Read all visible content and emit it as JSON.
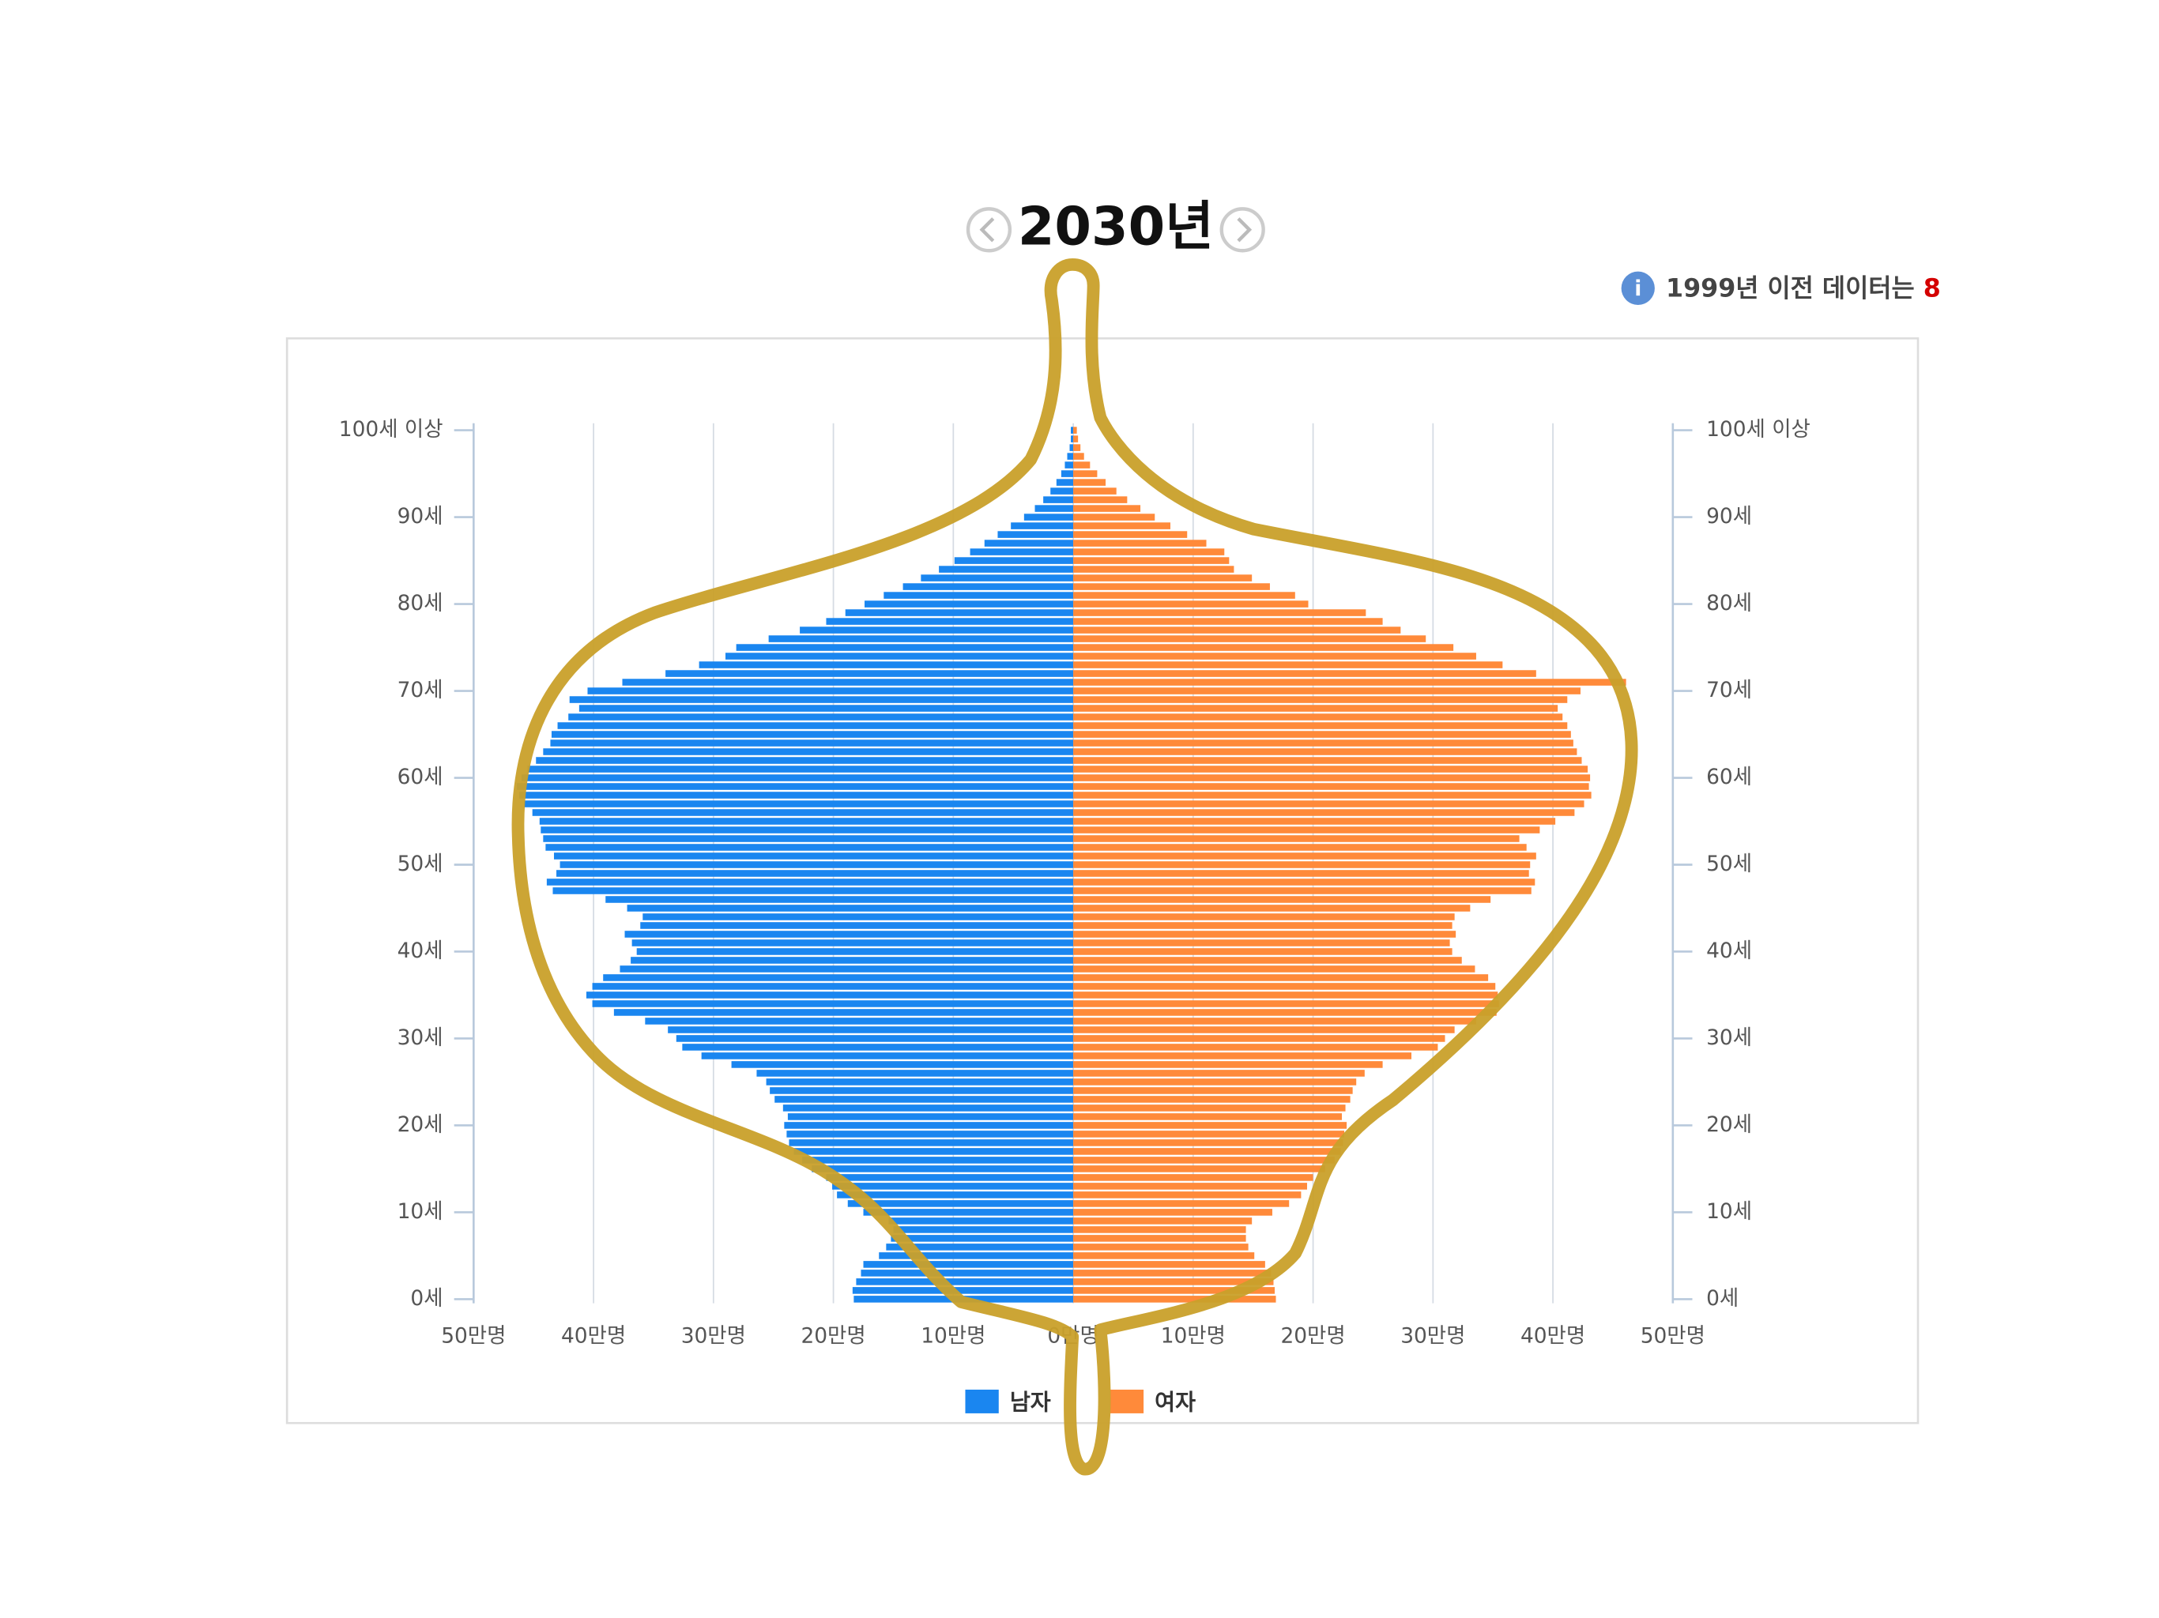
{
  "header": {
    "year": "2030년",
    "info_text": "1999년 이전 데이터는",
    "info_link": "8"
  },
  "chart_data": {
    "type": "pyramid",
    "categories": [
      "0세",
      null,
      null,
      null,
      null,
      null,
      null,
      null,
      null,
      null,
      "10세",
      null,
      null,
      null,
      null,
      null,
      null,
      null,
      null,
      null,
      "20세",
      null,
      null,
      null,
      null,
      null,
      null,
      null,
      null,
      null,
      "30세",
      null,
      null,
      null,
      null,
      null,
      null,
      null,
      null,
      null,
      "40세",
      null,
      null,
      null,
      null,
      null,
      null,
      null,
      null,
      null,
      "50세",
      null,
      null,
      null,
      null,
      null,
      null,
      null,
      null,
      null,
      "60세",
      null,
      null,
      null,
      null,
      null,
      null,
      null,
      null,
      null,
      "70세",
      null,
      null,
      null,
      null,
      null,
      null,
      null,
      null,
      null,
      "80세",
      null,
      null,
      null,
      null,
      null,
      null,
      null,
      null,
      null,
      "90세",
      null,
      null,
      null,
      null,
      null,
      null,
      null,
      null,
      null,
      "100세 이상"
    ],
    "series": [
      {
        "name": "남자",
        "color": "#1a86f0",
        "side": "left",
        "values": [
          18.3,
          18.4,
          18.1,
          17.7,
          17.5,
          16.2,
          15.6,
          15.2,
          15.0,
          15.4,
          17.5,
          18.8,
          19.7,
          20.1,
          20.6,
          21.8,
          22.6,
          23.3,
          23.7,
          23.9,
          24.1,
          23.8,
          24.2,
          24.9,
          25.3,
          25.6,
          26.4,
          28.5,
          31.0,
          32.6,
          33.1,
          33.8,
          35.7,
          38.3,
          40.1,
          40.6,
          40.1,
          39.2,
          37.8,
          36.9,
          36.4,
          36.8,
          37.4,
          36.1,
          35.9,
          37.2,
          39.0,
          43.4,
          43.9,
          43.1,
          42.8,
          43.3,
          44.0,
          44.2,
          44.4,
          44.5,
          45.1,
          45.8,
          46.2,
          46.4,
          46.0,
          45.5,
          44.8,
          44.2,
          43.6,
          43.5,
          43.0,
          42.1,
          41.2,
          42.0,
          40.5,
          37.6,
          34.0,
          31.2,
          29.0,
          28.1,
          25.4,
          22.8,
          20.6,
          19.0,
          17.4,
          15.8,
          14.2,
          12.7,
          11.2,
          9.9,
          8.6,
          7.4,
          6.3,
          5.2,
          4.1,
          3.2,
          2.5,
          1.9,
          1.4,
          1.0,
          0.7,
          0.5,
          0.3,
          0.2,
          0.2
        ]
      },
      {
        "name": "여자",
        "color": "#ff8a3a",
        "side": "right",
        "values": [
          16.9,
          16.8,
          16.7,
          16.5,
          16.0,
          15.1,
          14.6,
          14.4,
          14.4,
          14.9,
          16.6,
          18.0,
          19.0,
          19.5,
          20.0,
          21.0,
          21.8,
          22.3,
          22.5,
          22.6,
          22.8,
          22.4,
          22.7,
          23.1,
          23.3,
          23.6,
          24.3,
          25.8,
          28.2,
          30.4,
          31.0,
          31.8,
          33.6,
          35.3,
          35.5,
          35.4,
          35.2,
          34.6,
          33.5,
          32.4,
          31.6,
          31.4,
          31.9,
          31.6,
          31.8,
          33.1,
          34.8,
          38.2,
          38.5,
          38.0,
          38.1,
          38.6,
          37.8,
          37.2,
          38.9,
          40.2,
          41.8,
          42.6,
          43.2,
          43.0,
          43.1,
          42.9,
          42.4,
          42.0,
          41.7,
          41.5,
          41.2,
          40.8,
          40.4,
          41.2,
          42.3,
          46.1,
          38.6,
          35.8,
          33.6,
          31.7,
          29.4,
          27.3,
          25.8,
          24.4,
          19.6,
          18.5,
          16.4,
          14.9,
          13.4,
          13.0,
          12.6,
          11.1,
          9.5,
          8.1,
          6.8,
          5.6,
          4.5,
          3.6,
          2.7,
          2.0,
          1.4,
          0.9,
          0.6,
          0.4,
          0.3
        ]
      }
    ],
    "xlim": [
      -50,
      50
    ],
    "xticks": [
      {
        "value": -50,
        "label": "50만명"
      },
      {
        "value": -40,
        "label": "40만명"
      },
      {
        "value": -30,
        "label": "30만명"
      },
      {
        "value": -20,
        "label": "20만명"
      },
      {
        "value": -10,
        "label": "10만명"
      },
      {
        "value": 0,
        "label": "0만명"
      },
      {
        "value": 10,
        "label": "10만명"
      },
      {
        "value": 20,
        "label": "20만명"
      },
      {
        "value": 30,
        "label": "30만명"
      },
      {
        "value": 40,
        "label": "40만명"
      },
      {
        "value": 50,
        "label": "50만명"
      }
    ],
    "grid": true,
    "legend": "bottom"
  }
}
